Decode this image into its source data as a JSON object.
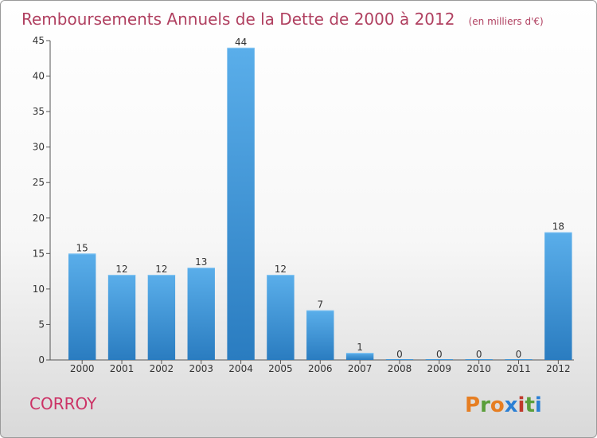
{
  "title": "Remboursements Annuels de la Dette de 2000 à 2012",
  "subtitle": "(en milliers d'€)",
  "place_name": "CORROY",
  "brand": "Proxiti",
  "colors": {
    "bar_top": "#5aaeea",
    "bar_bottom": "#2a7cc0",
    "title": "#b04060",
    "place": "#cc3366",
    "brand_letters": [
      "#e67e22",
      "#5a9e3a",
      "#e67e22",
      "#2b7fd4",
      "#c0392b",
      "#5a9e3a",
      "#2b7fd4"
    ]
  },
  "chart_data": {
    "type": "bar",
    "categories": [
      "2000",
      "2001",
      "2002",
      "2003",
      "2004",
      "2005",
      "2006",
      "2007",
      "2008",
      "2009",
      "2010",
      "2011",
      "2012"
    ],
    "values": [
      15,
      12,
      12,
      13,
      44,
      12,
      7,
      1,
      0,
      0,
      0,
      0,
      18
    ],
    "title": "Remboursements Annuels de la Dette de 2000 à 2012",
    "ylim": [
      0,
      45
    ],
    "yticks": [
      0,
      5,
      10,
      15,
      20,
      25,
      30,
      35,
      40,
      45
    ],
    "grid": false,
    "legend": "none"
  }
}
